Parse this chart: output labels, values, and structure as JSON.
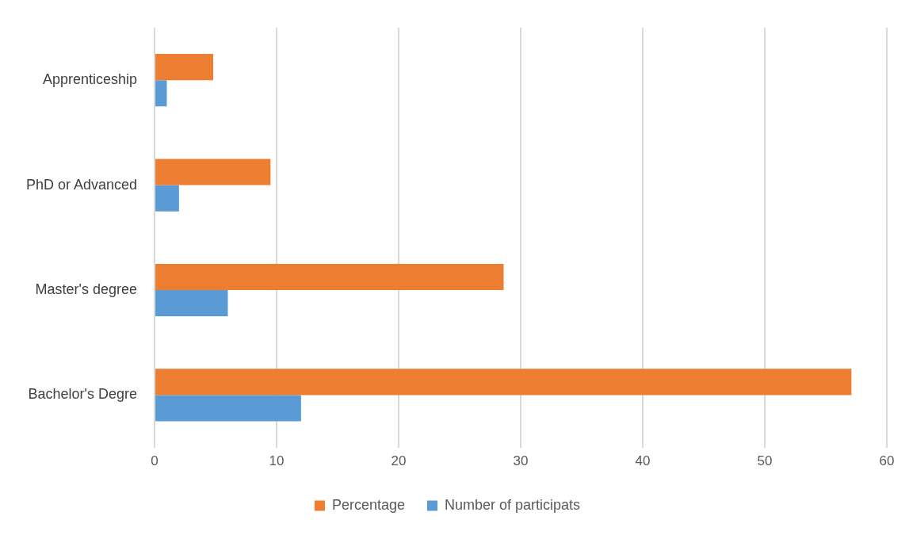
{
  "chart_data": {
    "type": "bar",
    "orientation": "horizontal",
    "categories": [
      "Apprenticeship",
      "PhD or Advanced",
      "Master's degree",
      "Bachelor's Degre"
    ],
    "series": [
      {
        "name": "Percentage",
        "color": "#ed7d31",
        "values": [
          4.8,
          9.5,
          28.6,
          57.1
        ]
      },
      {
        "name": "Number of participats",
        "color": "#5b9bd5",
        "values": [
          1,
          2,
          6,
          12
        ]
      }
    ],
    "xlim": [
      0,
      60
    ],
    "xticks": [
      0,
      10,
      20,
      30,
      40,
      50,
      60
    ],
    "grid": "x",
    "legend": "bottom"
  }
}
